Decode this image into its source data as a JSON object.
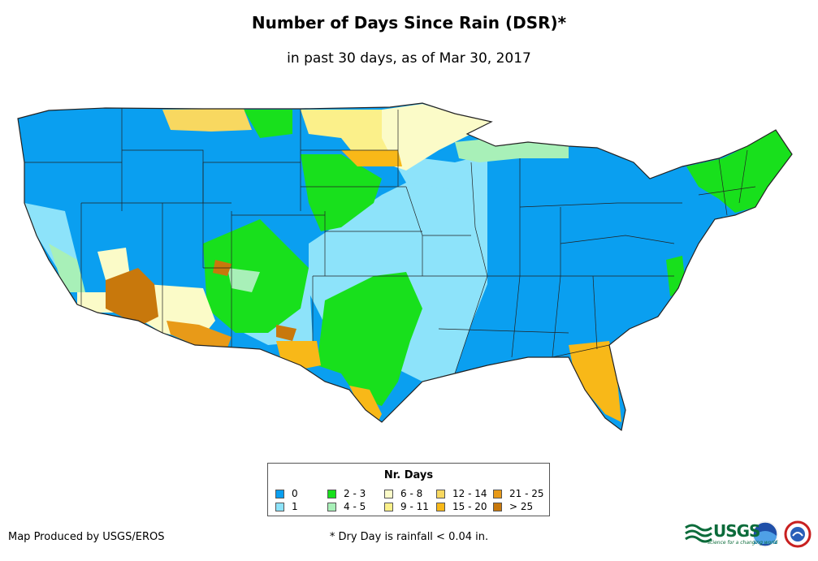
{
  "title": "Number of Days Since Rain (DSR)*",
  "subtitle": "in past 30 days, as of Mar 30, 2017",
  "legend": {
    "title": "Nr. Days",
    "items": [
      {
        "label": "0",
        "color": "#0a9ff0"
      },
      {
        "label": "1",
        "color": "#8de3fa"
      },
      {
        "label": "2 - 3",
        "color": "#18e01c"
      },
      {
        "label": "4 - 5",
        "color": "#a8f0b8"
      },
      {
        "label": "6 - 8",
        "color": "#fbfbc8"
      },
      {
        "label": "9 - 11",
        "color": "#fbf08a"
      },
      {
        "label": "12 - 14",
        "color": "#f8d860"
      },
      {
        "label": "15 - 20",
        "color": "#f8b818"
      },
      {
        "label": "21 - 25",
        "color": "#e89a18"
      },
      {
        "label": "> 25",
        "color": "#c8780c"
      }
    ]
  },
  "footer": {
    "producer": "Map Produced by USGS/EROS",
    "footnote": "* Dry Day is rainfall < 0.04 in."
  },
  "logos": {
    "usgs": "USGS",
    "usgs_tagline": "science for a changing world",
    "noaa": "noaa-logo",
    "nws": "nws-logo"
  }
}
